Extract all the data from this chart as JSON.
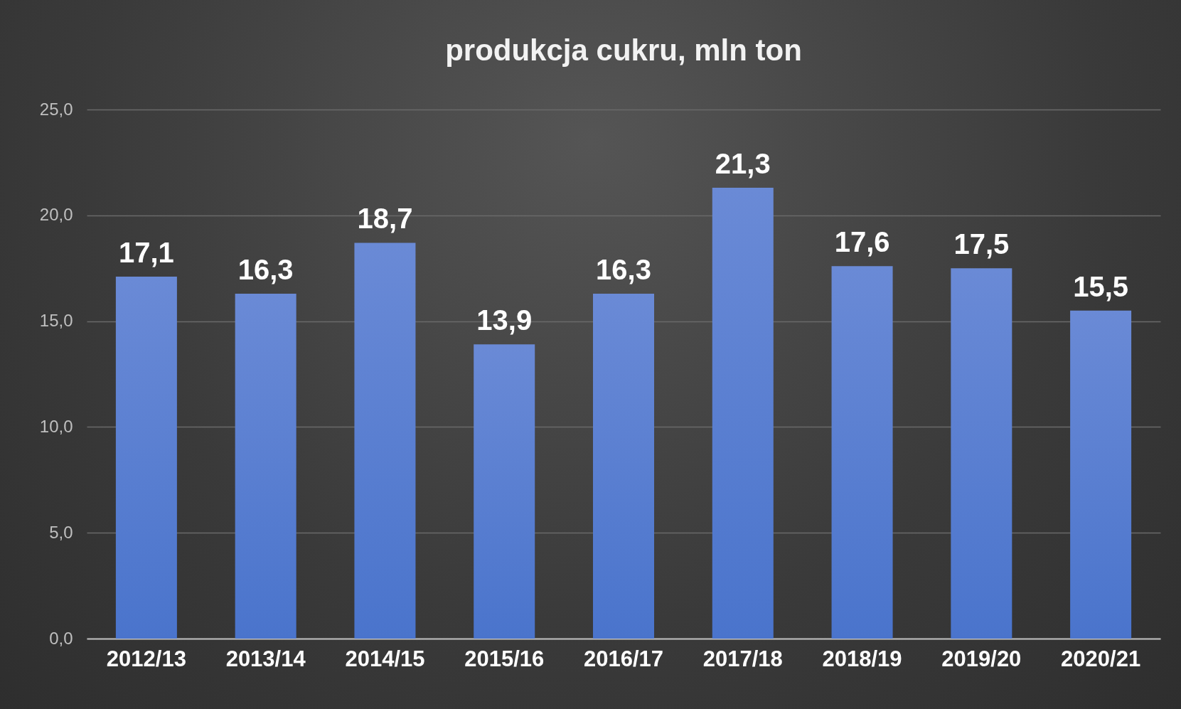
{
  "chart_data": {
    "type": "bar",
    "title": "produkcja cukru, mln ton",
    "categories": [
      "2012/13",
      "2013/14",
      "2014/15",
      "2015/16",
      "2016/17",
      "2017/18",
      "2018/19",
      "2019/20",
      "2020/21"
    ],
    "values": [
      17.1,
      16.3,
      18.7,
      13.9,
      16.3,
      21.3,
      17.6,
      17.5,
      15.5
    ],
    "value_labels": [
      "17,1",
      "16,3",
      "18,7",
      "13,9",
      "16,3",
      "21,3",
      "17,6",
      "17,5",
      "15,5"
    ],
    "color": "#4a74cc",
    "ylim": [
      0,
      25
    ],
    "yticks": [
      {
        "value": 0,
        "label": "0,0"
      },
      {
        "value": 5,
        "label": "5,0"
      },
      {
        "value": 10,
        "label": "10,0"
      },
      {
        "value": 15,
        "label": "15,0"
      },
      {
        "value": 20,
        "label": "20,0"
      },
      {
        "value": 25,
        "label": "25,0"
      }
    ],
    "grid": "y"
  }
}
